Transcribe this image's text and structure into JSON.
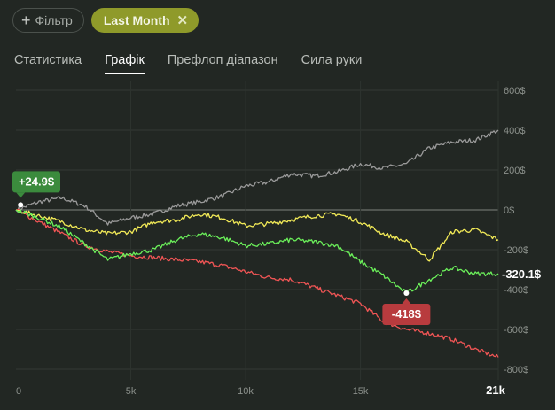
{
  "filters": {
    "add_label": "Фільтр",
    "active_label": "Last Month"
  },
  "tabs": [
    {
      "label": "Статистика",
      "active": false
    },
    {
      "label": "Графік",
      "active": true
    },
    {
      "label": "Префлоп діапазон",
      "active": false
    },
    {
      "label": "Сила руки",
      "active": false
    }
  ],
  "chart_data": {
    "type": "line",
    "x_ticks": [
      "0",
      "5k",
      "10k",
      "15k",
      "21k"
    ],
    "x_tick_values": [
      0,
      5000,
      10000,
      15000,
      21000
    ],
    "y_ticks": [
      "600$",
      "400$",
      "200$",
      "0$",
      "-200$",
      "-400$",
      "-600$",
      "-800$"
    ],
    "y_tick_values": [
      600,
      400,
      200,
      0,
      -200,
      -400,
      -600,
      -800
    ],
    "xlim": [
      0,
      21000
    ],
    "ylim": [
      -800,
      600
    ],
    "grid": true,
    "colors": {
      "gray": "#9a9a9a",
      "yellow": "#f2ea57",
      "green": "#6bf05a",
      "red": "#f05555"
    },
    "series": [
      {
        "color": "gray",
        "x": [
          0,
          1000,
          2000,
          3000,
          4000,
          5000,
          6000,
          7000,
          8000,
          9000,
          10000,
          11000,
          12000,
          13000,
          14000,
          15000,
          16000,
          17000,
          18000,
          19000,
          20000,
          21000
        ],
        "y": [
          0,
          40,
          60,
          20,
          -70,
          -40,
          -20,
          20,
          40,
          70,
          120,
          140,
          180,
          170,
          190,
          230,
          210,
          230,
          310,
          340,
          350,
          400
        ]
      },
      {
        "color": "yellow",
        "x": [
          0,
          1000,
          2000,
          3000,
          4000,
          5000,
          6000,
          7000,
          8000,
          9000,
          10000,
          11000,
          12000,
          13000,
          14000,
          15000,
          16000,
          17000,
          18000,
          19000,
          20000,
          21000
        ],
        "y": [
          0,
          -30,
          -60,
          -100,
          -120,
          -110,
          -60,
          -50,
          -20,
          -40,
          -80,
          -70,
          -50,
          -30,
          -20,
          -60,
          -120,
          -160,
          -250,
          -110,
          -100,
          -150
        ]
      },
      {
        "color": "green",
        "x": [
          0,
          1000,
          2000,
          3000,
          4000,
          5000,
          6000,
          7000,
          8000,
          9000,
          10000,
          11000,
          12000,
          13000,
          14000,
          15000,
          16000,
          17000,
          18000,
          19000,
          20000,
          21000
        ],
        "y": [
          0,
          -40,
          -90,
          -170,
          -250,
          -220,
          -200,
          -150,
          -120,
          -140,
          -180,
          -170,
          -150,
          -160,
          -180,
          -260,
          -330,
          -418,
          -350,
          -290,
          -320,
          -320.1
        ]
      },
      {
        "color": "red",
        "x": [
          0,
          1000,
          2000,
          3000,
          4000,
          5000,
          6000,
          7000,
          8000,
          9000,
          10000,
          11000,
          12000,
          13000,
          14000,
          15000,
          16000,
          17000,
          18000,
          19000,
          20000,
          21000
        ],
        "y": [
          0,
          -60,
          -120,
          -180,
          -210,
          -230,
          -240,
          -250,
          -260,
          -280,
          -310,
          -340,
          -350,
          -390,
          -430,
          -470,
          -560,
          -600,
          -620,
          -650,
          -700,
          -740
        ]
      }
    ],
    "annotations": [
      {
        "label": "+24.9$",
        "x": 200,
        "y": 24.9,
        "color": "#3b8b3d"
      },
      {
        "label": "-418$",
        "x": 17000,
        "y": -418,
        "color": "#b83b3e"
      }
    ],
    "end_label": "-320.1$"
  }
}
